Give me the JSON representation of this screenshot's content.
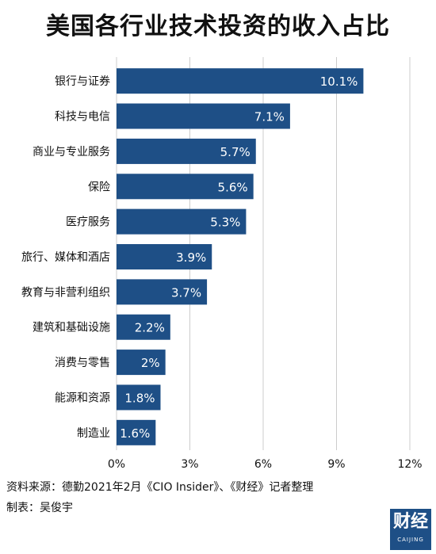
{
  "header": {
    "title": "美国各行业技术投资的收入占比"
  },
  "footer": {
    "source": "资料来源：德勤2021年2月《CIO Insider》、《财经》记者整理",
    "author": "制表：吴俊宇"
  },
  "logo": {
    "main": "财经",
    "sub": "CAIJING"
  },
  "colors": {
    "bar": "#1e4f86",
    "grid": "#cccccc",
    "label_inside": "#ffffff"
  },
  "chart_data": {
    "type": "bar",
    "orientation": "horizontal",
    "categories": [
      "银行与证券",
      "科技与电信",
      "商业与专业服务",
      "保险",
      "医疗服务",
      "旅行、媒体和酒店",
      "教育与非营利组织",
      "建筑和基础设施",
      "消费与零售",
      "能源和资源",
      "制造业"
    ],
    "values": [
      10.1,
      7.1,
      5.7,
      5.6,
      5.3,
      3.9,
      3.7,
      2.2,
      2,
      1.8,
      1.6
    ],
    "value_labels": [
      "10.1%",
      "7.1%",
      "5.7%",
      "5.6%",
      "5.3%",
      "3.9%",
      "3.7%",
      "2.2%",
      "2%",
      "1.8%",
      "1.6%"
    ],
    "xticks": [
      0,
      3,
      6,
      9,
      12
    ],
    "xtick_labels": [
      "0%",
      "3%",
      "6%",
      "9%",
      "12%"
    ],
    "xlim": [
      0,
      12
    ],
    "grid": true
  }
}
